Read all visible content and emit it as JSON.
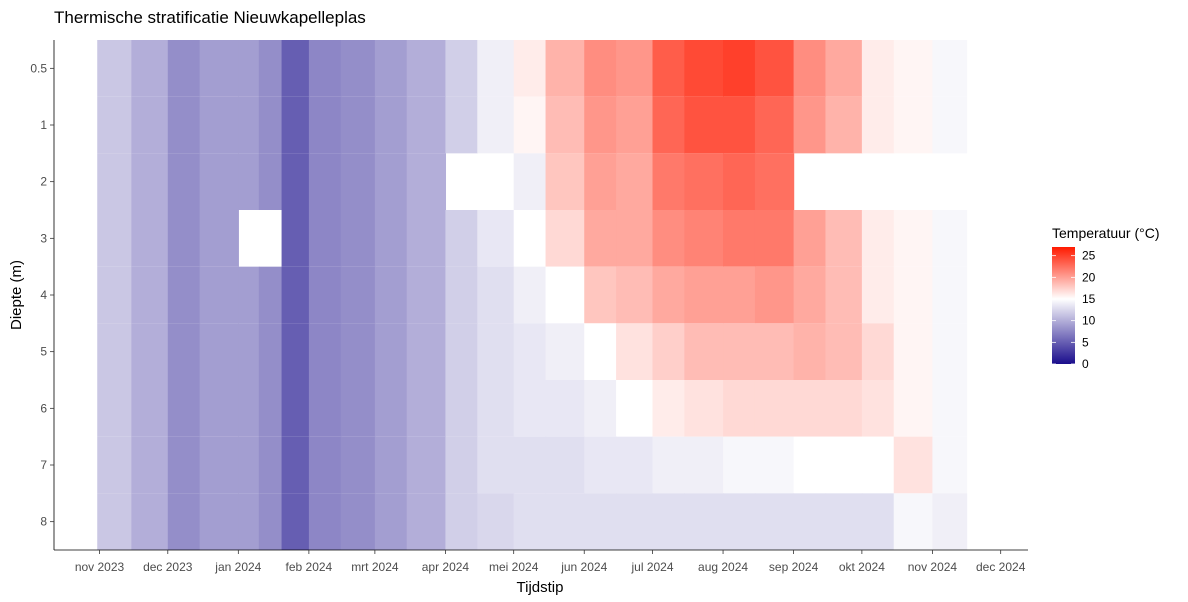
{
  "chart_data": {
    "type": "heatmap",
    "title": "Thermische stratificatie Nieuwkapelleplas",
    "xlabel": "Tijdstip",
    "ylabel": "Diepte (m)",
    "x_ticks": [
      "nov 2023",
      "dec 2023",
      "jan 2024",
      "feb 2024",
      "mrt 2024",
      "apr 2024",
      "mei 2024",
      "jun 2024",
      "jul 2024",
      "aug 2024",
      "sep 2024",
      "okt 2024",
      "nov 2024",
      "dec 2024"
    ],
    "xlim": [
      "2023-10-12",
      "2024-12-13"
    ],
    "data_range": [
      "2023-10-31",
      "2024-11-16"
    ],
    "depths": [
      0.5,
      1,
      2,
      3,
      4,
      5,
      6,
      7,
      8
    ],
    "y_ticks": [
      "0.5",
      "1",
      "2",
      "3",
      "4",
      "5",
      "6",
      "7",
      "8"
    ],
    "legend": {
      "title": "Temperatuur (°C)",
      "ticks": [
        0,
        5,
        10,
        15,
        20,
        25
      ],
      "range": [
        0,
        27
      ],
      "midpoint": 15,
      "colors": {
        "low": "#1a0d8c",
        "mid": "#ffffff",
        "high": "#ff1a00"
      },
      "placement": "right"
    },
    "series": [
      {
        "depth": 0.5,
        "points": [
          [
            "2023-10-31",
            11.5
          ],
          [
            "2023-11-15",
            10
          ],
          [
            "2023-12-01",
            8
          ],
          [
            "2023-12-15",
            9
          ],
          [
            "2024-01-01",
            9
          ],
          [
            "2024-01-10",
            8
          ],
          [
            "2024-01-20",
            5
          ],
          [
            "2024-02-01",
            7.5
          ],
          [
            "2024-02-15",
            8
          ],
          [
            "2024-03-01",
            9
          ],
          [
            "2024-03-15",
            10
          ],
          [
            "2024-04-01",
            12
          ],
          [
            "2024-04-15",
            14
          ],
          [
            "2024-05-01",
            16
          ],
          [
            "2024-05-15",
            19
          ],
          [
            "2024-06-01",
            21
          ],
          [
            "2024-06-15",
            20.5
          ],
          [
            "2024-07-01",
            23.5
          ],
          [
            "2024-07-15",
            24.5
          ],
          [
            "2024-08-01",
            25
          ],
          [
            "2024-08-15",
            24
          ],
          [
            "2024-09-01",
            21
          ],
          [
            "2024-09-15",
            19.5
          ],
          [
            "2024-10-01",
            16
          ],
          [
            "2024-10-15",
            15.5
          ],
          [
            "2024-11-01",
            14.5
          ],
          [
            "2024-11-16",
            11.5
          ]
        ]
      },
      {
        "depth": 1,
        "points": [
          [
            "2023-10-31",
            11.5
          ],
          [
            "2023-11-15",
            10
          ],
          [
            "2023-12-01",
            8
          ],
          [
            "2023-12-15",
            9
          ],
          [
            "2024-01-01",
            9
          ],
          [
            "2024-01-10",
            8
          ],
          [
            "2024-01-20",
            5
          ],
          [
            "2024-02-01",
            7.5
          ],
          [
            "2024-02-15",
            8
          ],
          [
            "2024-03-01",
            9
          ],
          [
            "2024-03-15",
            10
          ],
          [
            "2024-04-01",
            12
          ],
          [
            "2024-04-15",
            14
          ],
          [
            "2024-05-01",
            15.5
          ],
          [
            "2024-05-15",
            18.5
          ],
          [
            "2024-06-01",
            20.5
          ],
          [
            "2024-06-15",
            20
          ],
          [
            "2024-07-01",
            23
          ],
          [
            "2024-07-15",
            24
          ],
          [
            "2024-08-01",
            24
          ],
          [
            "2024-08-15",
            23
          ],
          [
            "2024-09-01",
            20.5
          ],
          [
            "2024-09-15",
            19
          ],
          [
            "2024-10-01",
            16
          ],
          [
            "2024-10-15",
            15.5
          ],
          [
            "2024-11-01",
            14.5
          ],
          [
            "2024-11-16",
            11.5
          ]
        ]
      },
      {
        "depth": 2,
        "points": [
          [
            "2023-10-31",
            11.5
          ],
          [
            "2023-11-15",
            10
          ],
          [
            "2023-12-01",
            8
          ],
          [
            "2023-12-15",
            9
          ],
          [
            "2024-01-01",
            9
          ],
          [
            "2024-01-10",
            8
          ],
          [
            "2024-01-20",
            5
          ],
          [
            "2024-02-01",
            7.5
          ],
          [
            "2024-02-15",
            8
          ],
          [
            "2024-03-01",
            9
          ],
          [
            "2024-03-15",
            10
          ],
          [
            "2024-04-01",
            null
          ],
          [
            "2024-04-15",
            null
          ],
          [
            "2024-05-01",
            14
          ],
          [
            "2024-05-15",
            18
          ],
          [
            "2024-06-01",
            20
          ],
          [
            "2024-06-15",
            19.5
          ],
          [
            "2024-07-01",
            22
          ],
          [
            "2024-07-15",
            22.5
          ],
          [
            "2024-08-01",
            23
          ],
          [
            "2024-08-15",
            22.5
          ],
          [
            "2024-09-01",
            null
          ],
          [
            "2024-09-15",
            null
          ],
          [
            "2024-10-01",
            null
          ],
          [
            "2024-10-15",
            null
          ],
          [
            "2024-11-01",
            null
          ],
          [
            "2024-11-16",
            null
          ]
        ]
      },
      {
        "depth": 3,
        "points": [
          [
            "2023-10-31",
            11.5
          ],
          [
            "2023-11-15",
            10
          ],
          [
            "2023-12-01",
            8
          ],
          [
            "2023-12-15",
            9
          ],
          [
            "2024-01-01",
            null
          ],
          [
            "2024-01-10",
            null
          ],
          [
            "2024-01-20",
            5
          ],
          [
            "2024-02-01",
            7.5
          ],
          [
            "2024-02-15",
            8
          ],
          [
            "2024-03-01",
            9
          ],
          [
            "2024-03-15",
            10
          ],
          [
            "2024-04-01",
            12
          ],
          [
            "2024-04-15",
            13.5
          ],
          [
            "2024-05-01",
            15
          ],
          [
            "2024-05-15",
            17
          ],
          [
            "2024-06-01",
            19.5
          ],
          [
            "2024-06-15",
            19.5
          ],
          [
            "2024-07-01",
            21
          ],
          [
            "2024-07-15",
            21.5
          ],
          [
            "2024-08-01",
            22
          ],
          [
            "2024-08-15",
            22
          ],
          [
            "2024-09-01",
            20
          ],
          [
            "2024-09-15",
            18.5
          ],
          [
            "2024-10-01",
            16
          ],
          [
            "2024-10-15",
            15.5
          ],
          [
            "2024-11-01",
            14.5
          ],
          [
            "2024-11-16",
            11
          ]
        ]
      },
      {
        "depth": 4,
        "points": [
          [
            "2023-10-31",
            11.5
          ],
          [
            "2023-11-15",
            10
          ],
          [
            "2023-12-01",
            8
          ],
          [
            "2023-12-15",
            9
          ],
          [
            "2024-01-01",
            9
          ],
          [
            "2024-01-10",
            8
          ],
          [
            "2024-01-20",
            5
          ],
          [
            "2024-02-01",
            7.5
          ],
          [
            "2024-02-15",
            8
          ],
          [
            "2024-03-01",
            9
          ],
          [
            "2024-03-15",
            10
          ],
          [
            "2024-04-01",
            12
          ],
          [
            "2024-04-15",
            13
          ],
          [
            "2024-05-01",
            14
          ],
          [
            "2024-05-15",
            15
          ],
          [
            "2024-06-01",
            18
          ],
          [
            "2024-06-15",
            18.5
          ],
          [
            "2024-07-01",
            19.5
          ],
          [
            "2024-07-15",
            20
          ],
          [
            "2024-08-01",
            20
          ],
          [
            "2024-08-15",
            20.5
          ],
          [
            "2024-09-01",
            19.5
          ],
          [
            "2024-09-15",
            18.5
          ],
          [
            "2024-10-01",
            16
          ],
          [
            "2024-10-15",
            15.5
          ],
          [
            "2024-11-01",
            14.5
          ],
          [
            "2024-11-16",
            11
          ]
        ]
      },
      {
        "depth": 5,
        "points": [
          [
            "2023-10-31",
            11.5
          ],
          [
            "2023-11-15",
            10
          ],
          [
            "2023-12-01",
            8
          ],
          [
            "2023-12-15",
            9
          ],
          [
            "2024-01-01",
            9
          ],
          [
            "2024-01-10",
            8
          ],
          [
            "2024-01-20",
            5
          ],
          [
            "2024-02-01",
            7.5
          ],
          [
            "2024-02-15",
            8
          ],
          [
            "2024-03-01",
            9
          ],
          [
            "2024-03-15",
            10
          ],
          [
            "2024-04-01",
            12
          ],
          [
            "2024-04-15",
            13
          ],
          [
            "2024-05-01",
            13.5
          ],
          [
            "2024-05-15",
            14
          ],
          [
            "2024-06-01",
            15
          ],
          [
            "2024-06-15",
            16.5
          ],
          [
            "2024-07-01",
            17.5
          ],
          [
            "2024-07-15",
            18.5
          ],
          [
            "2024-08-01",
            18.5
          ],
          [
            "2024-08-15",
            18.5
          ],
          [
            "2024-09-01",
            19
          ],
          [
            "2024-09-15",
            18.5
          ],
          [
            "2024-10-01",
            17
          ],
          [
            "2024-10-15",
            15.5
          ],
          [
            "2024-11-01",
            14.5
          ],
          [
            "2024-11-16",
            11
          ]
        ]
      },
      {
        "depth": 6,
        "points": [
          [
            "2023-10-31",
            11.5
          ],
          [
            "2023-11-15",
            10
          ],
          [
            "2023-12-01",
            8
          ],
          [
            "2023-12-15",
            9
          ],
          [
            "2024-01-01",
            9
          ],
          [
            "2024-01-10",
            8
          ],
          [
            "2024-01-20",
            5
          ],
          [
            "2024-02-01",
            7.5
          ],
          [
            "2024-02-15",
            8
          ],
          [
            "2024-03-01",
            9
          ],
          [
            "2024-03-15",
            10
          ],
          [
            "2024-04-01",
            12
          ],
          [
            "2024-04-15",
            13
          ],
          [
            "2024-05-01",
            13.5
          ],
          [
            "2024-05-15",
            13.5
          ],
          [
            "2024-06-01",
            14
          ],
          [
            "2024-06-15",
            15
          ],
          [
            "2024-07-01",
            16
          ],
          [
            "2024-07-15",
            16.5
          ],
          [
            "2024-08-01",
            17
          ],
          [
            "2024-08-15",
            17
          ],
          [
            "2024-09-01",
            17
          ],
          [
            "2024-09-15",
            17
          ],
          [
            "2024-10-01",
            16.5
          ],
          [
            "2024-10-15",
            15.5
          ],
          [
            "2024-11-01",
            14.5
          ],
          [
            "2024-11-16",
            11
          ]
        ]
      },
      {
        "depth": 7,
        "points": [
          [
            "2023-10-31",
            11.5
          ],
          [
            "2023-11-15",
            10
          ],
          [
            "2023-12-01",
            8
          ],
          [
            "2023-12-15",
            9
          ],
          [
            "2024-01-01",
            9
          ],
          [
            "2024-01-10",
            8
          ],
          [
            "2024-01-20",
            5
          ],
          [
            "2024-02-01",
            7.5
          ],
          [
            "2024-02-15",
            8
          ],
          [
            "2024-03-01",
            9
          ],
          [
            "2024-03-15",
            10
          ],
          [
            "2024-04-01",
            12
          ],
          [
            "2024-04-15",
            13
          ],
          [
            "2024-05-01",
            13
          ],
          [
            "2024-05-15",
            13
          ],
          [
            "2024-06-01",
            13.5
          ],
          [
            "2024-06-15",
            13.5
          ],
          [
            "2024-07-01",
            14
          ],
          [
            "2024-07-15",
            14
          ],
          [
            "2024-08-01",
            14.5
          ],
          [
            "2024-08-15",
            14.5
          ],
          [
            "2024-09-01",
            15
          ],
          [
            "2024-09-15",
            15
          ],
          [
            "2024-10-01",
            15
          ],
          [
            "2024-10-15",
            16.5
          ],
          [
            "2024-11-01",
            14.5
          ],
          [
            "2024-11-16",
            11
          ]
        ]
      },
      {
        "depth": 8,
        "points": [
          [
            "2023-10-31",
            11.5
          ],
          [
            "2023-11-15",
            10
          ],
          [
            "2023-12-01",
            8
          ],
          [
            "2023-12-15",
            9
          ],
          [
            "2024-01-01",
            9
          ],
          [
            "2024-01-10",
            8
          ],
          [
            "2024-01-20",
            5
          ],
          [
            "2024-02-01",
            7.5
          ],
          [
            "2024-02-15",
            8
          ],
          [
            "2024-03-01",
            9
          ],
          [
            "2024-03-15",
            10
          ],
          [
            "2024-04-01",
            12
          ],
          [
            "2024-04-15",
            12.5
          ],
          [
            "2024-05-01",
            13
          ],
          [
            "2024-05-15",
            13
          ],
          [
            "2024-06-01",
            13
          ],
          [
            "2024-06-15",
            13
          ],
          [
            "2024-07-01",
            13
          ],
          [
            "2024-07-15",
            13
          ],
          [
            "2024-08-01",
            13
          ],
          [
            "2024-08-15",
            13
          ],
          [
            "2024-09-01",
            13
          ],
          [
            "2024-09-15",
            13
          ],
          [
            "2024-10-01",
            13
          ],
          [
            "2024-10-15",
            14.5
          ],
          [
            "2024-11-01",
            14
          ],
          [
            "2024-11-16",
            11
          ]
        ]
      }
    ]
  }
}
